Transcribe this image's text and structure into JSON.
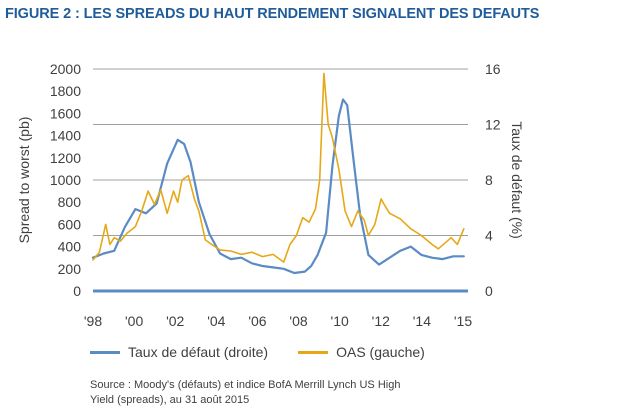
{
  "figure_title": "FIGURE 2 : LES SPREADS DU HAUT RENDEMENT SIGNALENT DES DEFAUTS",
  "source_note": "Source : Moody's (défauts) et indice BofA Merrill Lynch US High Yield (spreads), au 31 août 2015",
  "colors": {
    "default_rate": "#5b8bc4",
    "oas": "#e6a817",
    "title": "#1f5c99"
  },
  "chart_data": {
    "type": "line",
    "title": "FIGURE 2 : LES SPREADS DU HAUT RENDEMENT SIGNALENT DES DEFAUTS",
    "xlabel": "",
    "ylabel_left": "Spread to worst (pb)",
    "ylabel_right": "Taux de défaut (%)",
    "x_range": [
      1998,
      2015.7
    ],
    "ylim_left": [
      0,
      2000
    ],
    "ylim_right": [
      0,
      16
    ],
    "x_tick_labels": [
      "'98",
      "'00",
      "'02",
      "'04",
      "'06",
      "'08",
      "'10",
      "'12",
      "'14",
      "'15"
    ],
    "y_left_ticks": [
      "0",
      "200",
      "400",
      "600",
      "800",
      "1000",
      "1200",
      "1400",
      "1600",
      "1800",
      "2000"
    ],
    "y_right_ticks": [
      "0",
      "4",
      "8",
      "12",
      "16"
    ],
    "grid": "horizontal",
    "legend_position": "bottom",
    "series": [
      {
        "name": "Taux de défaut (droite)",
        "axis": "right",
        "color": "#5b8bc4",
        "x": [
          1998.0,
          1998.5,
          1999.0,
          1999.5,
          2000.0,
          2000.5,
          2001.0,
          2001.5,
          2002.0,
          2002.3,
          2002.6,
          2003.0,
          2003.5,
          2004.0,
          2004.5,
          2005.0,
          2005.5,
          2006.0,
          2006.5,
          2007.0,
          2007.5,
          2008.0,
          2008.3,
          2008.6,
          2009.0,
          2009.3,
          2009.6,
          2009.8,
          2010.0,
          2010.3,
          2010.6,
          2011.0,
          2011.5,
          2012.0,
          2012.5,
          2013.0,
          2013.5,
          2014.0,
          2014.5,
          2015.0,
          2015.5
        ],
        "values": [
          2.4,
          2.7,
          2.9,
          4.6,
          5.9,
          5.6,
          6.3,
          9.2,
          10.9,
          10.6,
          9.3,
          6.4,
          4.1,
          2.7,
          2.3,
          2.4,
          2.0,
          1.8,
          1.7,
          1.6,
          1.3,
          1.4,
          1.8,
          2.6,
          4.2,
          9.0,
          12.6,
          13.8,
          13.4,
          9.4,
          5.6,
          2.6,
          1.9,
          2.4,
          2.9,
          3.2,
          2.6,
          2.4,
          2.3,
          2.5,
          2.5
        ]
      },
      {
        "name": "OAS (gauche)",
        "axis": "left",
        "color": "#e6a817",
        "x": [
          1998.0,
          1998.3,
          1998.6,
          1998.8,
          1999.0,
          1999.3,
          1999.6,
          2000.0,
          2000.3,
          2000.6,
          2000.9,
          2001.2,
          2001.5,
          2001.8,
          2002.0,
          2002.2,
          2002.5,
          2002.8,
          2003.0,
          2003.3,
          2003.6,
          2004.0,
          2004.5,
          2005.0,
          2005.5,
          2006.0,
          2006.5,
          2007.0,
          2007.3,
          2007.6,
          2007.9,
          2008.2,
          2008.5,
          2008.7,
          2008.9,
          2009.1,
          2009.3,
          2009.6,
          2009.9,
          2010.2,
          2010.5,
          2010.8,
          2011.0,
          2011.3,
          2011.6,
          2011.8,
          2012.0,
          2012.5,
          2013.0,
          2013.5,
          2014.0,
          2014.3,
          2014.6,
          2014.9,
          2015.2,
          2015.5
        ],
        "values": [
          280,
          350,
          600,
          420,
          480,
          450,
          520,
          580,
          720,
          900,
          780,
          910,
          700,
          900,
          800,
          1000,
          1040,
          820,
          720,
          460,
          420,
          370,
          360,
          330,
          350,
          310,
          330,
          260,
          420,
          500,
          660,
          620,
          740,
          1000,
          1960,
          1500,
          1380,
          1100,
          720,
          580,
          720,
          640,
          500,
          600,
          830,
          760,
          700,
          650,
          560,
          500,
          420,
          380,
          430,
          480,
          420,
          560
        ]
      }
    ]
  }
}
